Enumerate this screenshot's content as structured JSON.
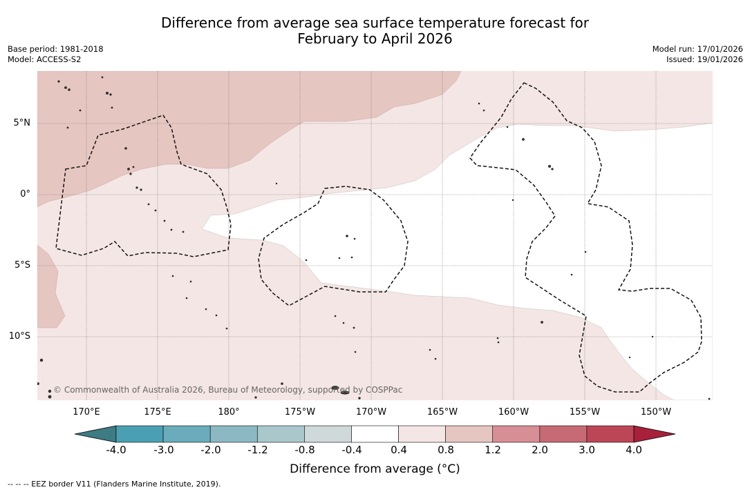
{
  "title": {
    "line1": "Difference from average sea surface temperature forecast for",
    "line2": "February to April 2026"
  },
  "meta": {
    "base_period": "Base period: 1981-2018",
    "model": "Model: ACCESS-S2",
    "model_run": "Model run: 17/01/2026",
    "issued": "Issued: 19/01/2026"
  },
  "map": {
    "lat_labels": [
      "5°N",
      "0°",
      "5°S",
      "10°S"
    ],
    "lon_labels": [
      "170°E",
      "175°E",
      "180°",
      "175°W",
      "170°W",
      "165°W",
      "160°W",
      "155°W",
      "150°W"
    ],
    "copyright": "© Commonwealth of Australia 2026, Bureau of Meteorology, supported by COSPPac",
    "region_fill_colors": {
      "land": "#3a3a3a",
      "0.8_to_1.2": "#e6c6c1",
      "0.4_to_0.8": "#f4e6e4",
      "-0.4_to_0.4": "#ffffff"
    }
  },
  "colorbar": {
    "tick_labels": [
      "-4.0",
      "-3.0",
      "-2.0",
      "-1.2",
      "-0.8",
      "-0.4",
      "0.4",
      "0.8",
      "1.2",
      "2.0",
      "3.0",
      "4.0"
    ],
    "segment_colors": [
      "#4aa0b2",
      "#6aacbb",
      "#8cb8c3",
      "#aac8cc",
      "#cfd9da",
      "#ffffff",
      "#f4e6e4",
      "#e6c6c1",
      "#d68f95",
      "#c66a74",
      "#bc4656"
    ],
    "extend_min_color": "#3d7c82",
    "extend_max_color": "#a8203a",
    "title": "Difference from average (°C)"
  },
  "footnote": "--  --  -- EEZ border V11 (Flanders Marine Institute, 2019)."
}
